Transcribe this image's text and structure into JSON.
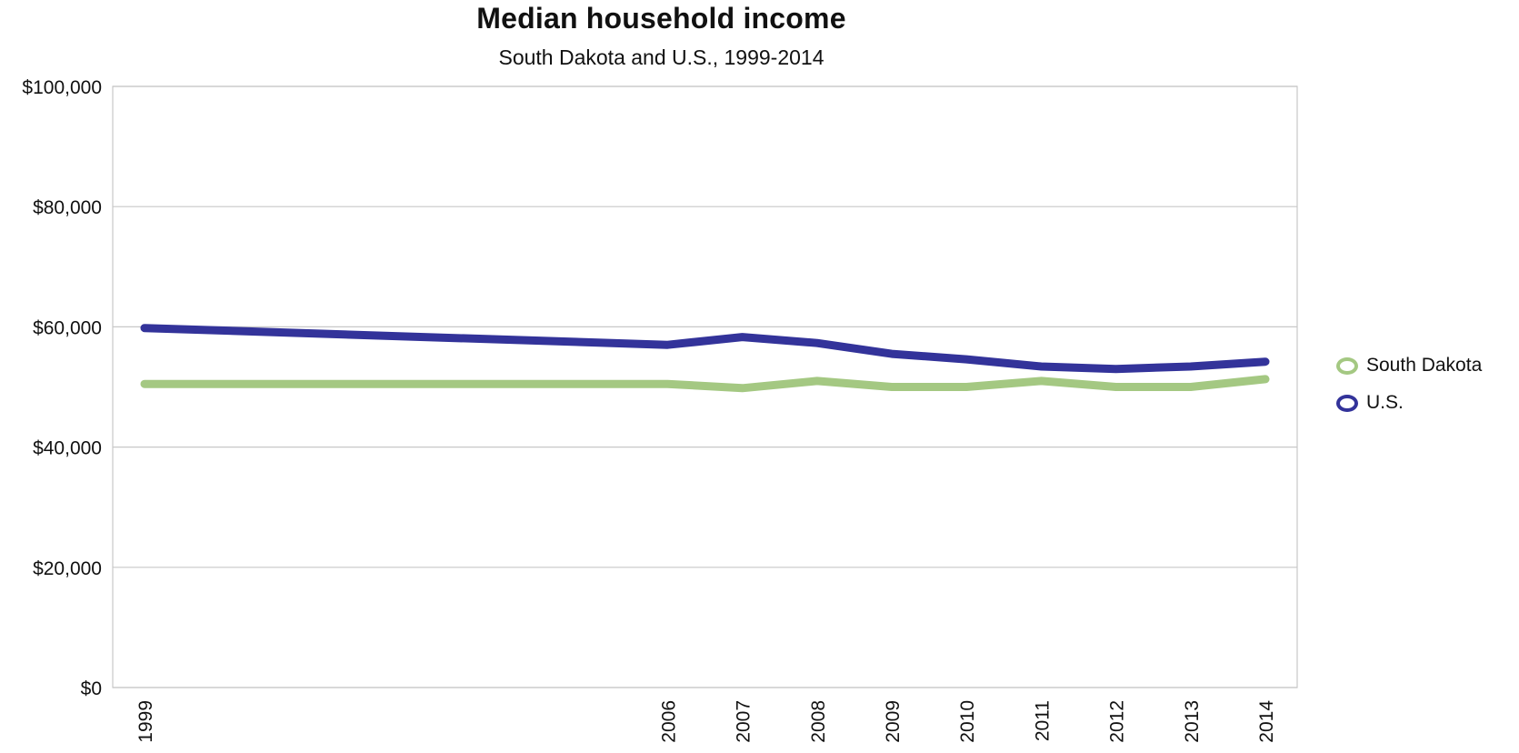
{
  "chart_data": {
    "type": "line",
    "title": "Median household income",
    "subtitle": "South Dakota and U.S., 1999-2014",
    "categories": [
      "1999",
      "2006",
      "2007",
      "2008",
      "2009",
      "2010",
      "2011",
      "2012",
      "2013",
      "2014"
    ],
    "x": [
      1999,
      2006,
      2007,
      2008,
      2009,
      2010,
      2011,
      2012,
      2013,
      2014
    ],
    "y_ticks": [
      0,
      20000,
      40000,
      60000,
      80000,
      100000
    ],
    "y_tick_labels": [
      "$0",
      "$20,000",
      "$40,000",
      "$60,000",
      "$80,000",
      "$100,000"
    ],
    "ylim": [
      0,
      100000
    ],
    "xlim": [
      1999,
      2014
    ],
    "xlabel": "",
    "ylabel": "",
    "grid": true,
    "legend": "right",
    "series": [
      {
        "name": "South Dakota",
        "color": "#a4c882",
        "values": [
          50500,
          50500,
          49800,
          51000,
          50000,
          50000,
          51000,
          50000,
          50000,
          51300
        ]
      },
      {
        "name": "U.S.",
        "color": "#33339a",
        "values": [
          59800,
          57000,
          58300,
          57300,
          55500,
          54600,
          53400,
          53000,
          53400,
          54200
        ]
      }
    ]
  }
}
